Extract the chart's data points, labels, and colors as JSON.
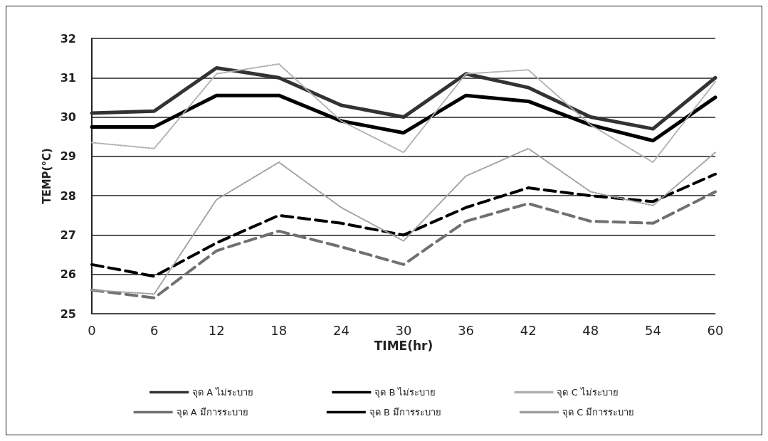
{
  "chart_data": {
    "type": "line",
    "xlabel": "TIME(hr)",
    "ylabel": "TEMP(°C)",
    "x": [
      0,
      6,
      12,
      18,
      24,
      30,
      36,
      42,
      48,
      54,
      60
    ],
    "xlim": [
      0,
      60
    ],
    "xticks": [
      0,
      6,
      12,
      18,
      24,
      30,
      36,
      42,
      48,
      54,
      60
    ],
    "ylim": [
      25,
      32
    ],
    "yticks": [
      25,
      26,
      27,
      28,
      29,
      30,
      31,
      32
    ],
    "grid": "y",
    "legend": "bottom",
    "marker": "none",
    "series": [
      {
        "name": "จุด A ไม่ระบาย",
        "color": "#333333",
        "line_style": "solid",
        "values": [
          30.1,
          30.15,
          31.25,
          31.0,
          30.3,
          30.0,
          31.1,
          30.75,
          30.0,
          29.7,
          31.0
        ]
      },
      {
        "name": "จุด B ไม่ระบาย",
        "color": "#000000",
        "line_style": "solid",
        "values": [
          29.75,
          29.75,
          30.55,
          30.55,
          29.9,
          29.6,
          30.55,
          30.4,
          29.8,
          29.4,
          30.5
        ]
      },
      {
        "name": "จุด C ไม่ระบาย",
        "color": "#b0b0b0",
        "line_style": "dotted",
        "values": [
          29.35,
          29.2,
          31.1,
          31.35,
          29.9,
          29.1,
          31.1,
          31.2,
          29.8,
          28.85,
          30.9
        ]
      },
      {
        "name": "จุด A มีการระบาย",
        "color": "#707070",
        "line_style": "dashed",
        "values": [
          25.6,
          25.4,
          26.6,
          27.1,
          26.7,
          26.25,
          27.35,
          27.8,
          27.35,
          27.3,
          28.1
        ]
      },
      {
        "name": "จุด B มีการระบาย",
        "color": "#000000",
        "line_style": "dashed",
        "values": [
          26.25,
          25.95,
          26.8,
          27.5,
          27.3,
          27.0,
          27.7,
          28.2,
          28.0,
          27.85,
          28.55
        ]
      },
      {
        "name": "จุด C มีการระบาย",
        "color": "#a0a0a0",
        "line_style": "dotted",
        "values": [
          25.6,
          25.5,
          27.9,
          28.85,
          27.7,
          26.85,
          28.5,
          29.2,
          28.1,
          27.75,
          29.1
        ]
      }
    ]
  }
}
